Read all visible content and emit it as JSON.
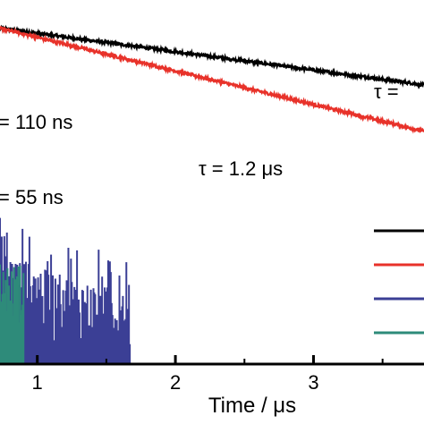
{
  "chart_data": {
    "type": "line",
    "title": "",
    "xlabel": "Time / μs",
    "ylabel": "",
    "y_scale": "log",
    "grid": false,
    "legend": "right",
    "xlim": [
      0.73,
      3.8
    ],
    "ylim": [
      0.8,
      6000
    ],
    "x_ticks": [
      {
        "value": 1,
        "label": "1"
      },
      {
        "value": 2,
        "label": "2"
      },
      {
        "value": 3,
        "label": "3"
      }
    ],
    "annotations": [
      {
        "id": "tau-black",
        "text": "τ = "
      },
      {
        "id": "tau-110",
        "text": "= 110 ns"
      },
      {
        "id": "tau-red",
        "text": "τ = 1.2 μs"
      },
      {
        "id": "tau-55",
        "text": "= 55 ns"
      }
    ],
    "series": [
      {
        "color": "#000000",
        "kind": "decay",
        "x": [
          0.73,
          3.8
        ],
        "y": [
          3000,
          750
        ]
      },
      {
        "color": "#e8322a",
        "kind": "decay",
        "x": [
          0.73,
          3.8
        ],
        "y": [
          3000,
          240
        ]
      },
      {
        "color": "#3b3f95",
        "kind": "tail",
        "x_end": 1.67,
        "typical_max": 8
      },
      {
        "color": "#2e8b7a",
        "kind": "tail",
        "x_end": 0.9,
        "typical_max": 3
      }
    ]
  }
}
